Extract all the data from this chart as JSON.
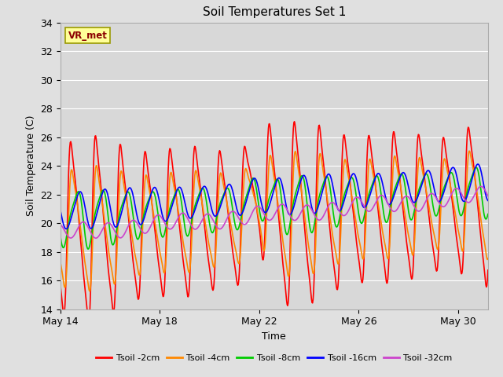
{
  "title": "Soil Temperatures Set 1",
  "xlabel": "Time",
  "ylabel": "Soil Temperature (C)",
  "ylim": [
    14,
    34
  ],
  "yticks": [
    14,
    16,
    18,
    20,
    22,
    24,
    26,
    28,
    30,
    32,
    34
  ],
  "fig_bg_color": "#e0e0e0",
  "plot_bg_color": "#d8d8d8",
  "annotation_text": "VR_met",
  "annotation_box_color": "#ffff99",
  "annotation_text_color": "#8b0000",
  "annotation_border_color": "#999900",
  "series_colors": [
    "#ff0000",
    "#ff8800",
    "#00cc00",
    "#0000ff",
    "#cc44cc"
  ],
  "series_labels": [
    "Tsoil -2cm",
    "Tsoil -4cm",
    "Tsoil -8cm",
    "Tsoil -16cm",
    "Tsoil -32cm"
  ],
  "line_width": 1.2,
  "xtick_positions": [
    14,
    18,
    22,
    26,
    30
  ],
  "xtick_labels": [
    "May 14",
    "May 18",
    "May 22",
    "May 26",
    "May 30"
  ],
  "xlim": [
    14,
    31.2
  ],
  "grid_color": "#ffffff",
  "title_fontsize": 11,
  "axis_fontsize": 9,
  "tick_fontsize": 9
}
